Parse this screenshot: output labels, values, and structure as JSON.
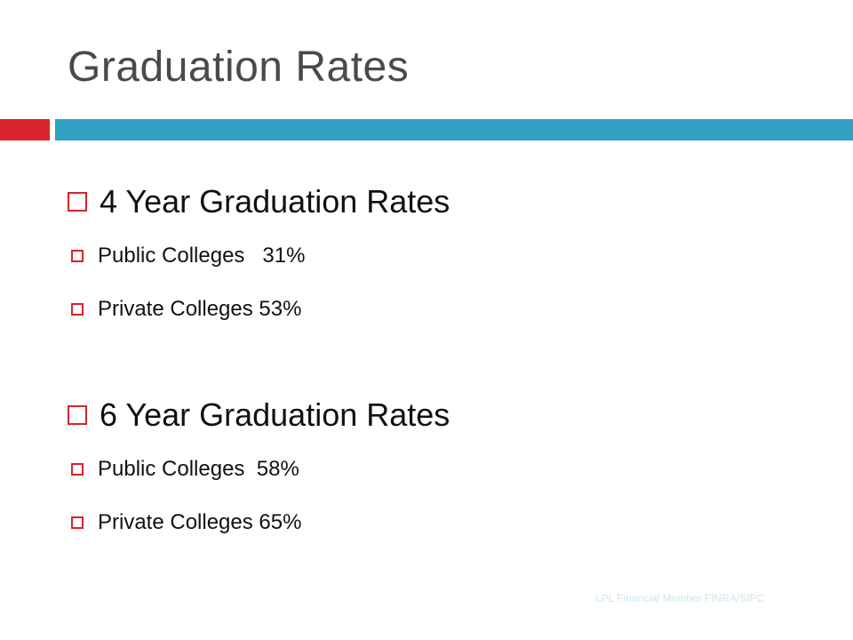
{
  "slide": {
    "title": "Graduation Rates",
    "sections": [
      {
        "heading": "4 Year Graduation Rates",
        "items": [
          "Public Colleges   31%",
          "Private Colleges 53%"
        ]
      },
      {
        "heading": "6 Year Graduation Rates",
        "items": [
          "Public Colleges  58%",
          "Private Colleges 65%"
        ]
      }
    ],
    "footer": "LPL Financial Member FINRA/SIPC"
  },
  "colors": {
    "accent_red": "#d9222a",
    "accent_teal": "#2fa1c3",
    "title_gray": "#4a4a4a"
  },
  "icons": {
    "bullet": "hollow-square-bullet-icon"
  }
}
